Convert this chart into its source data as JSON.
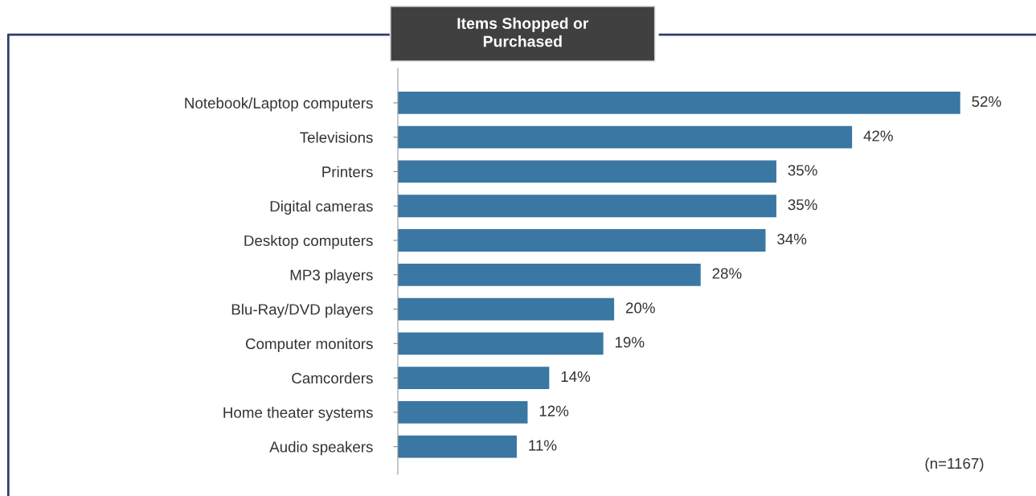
{
  "chart_data": {
    "type": "bar",
    "orientation": "horizontal",
    "title": "Items Shopped or\nPurchased",
    "categories": [
      "Notebook/Laptop computers",
      "Televisions",
      "Printers",
      "Digital cameras",
      "Desktop computers",
      "MP3 players",
      "Blu-Ray/DVD players",
      "Computer monitors",
      "Camcorders",
      "Home theater systems",
      "Audio speakers"
    ],
    "values": [
      52,
      42,
      35,
      35,
      34,
      28,
      20,
      19,
      14,
      12,
      11
    ],
    "value_labels": [
      "52%",
      "42%",
      "35%",
      "35%",
      "34%",
      "28%",
      "20%",
      "19%",
      "14%",
      "12%",
      "11%"
    ],
    "color": "#3a77a3",
    "tick_labels": "y",
    "annotations": [
      "(n=1167)"
    ]
  }
}
